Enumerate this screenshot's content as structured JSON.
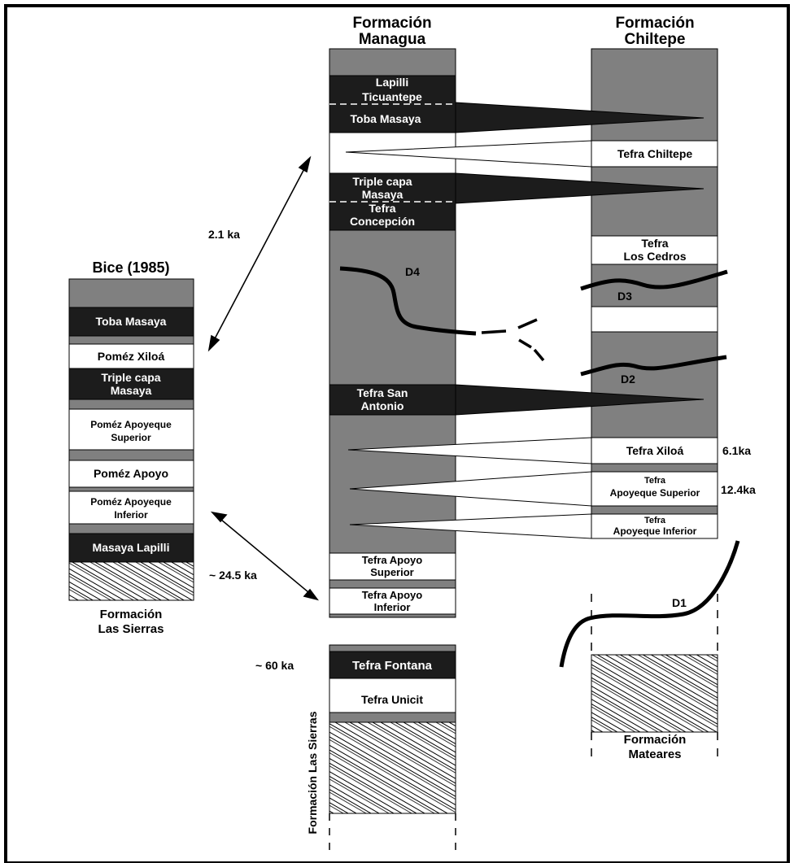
{
  "colors": {
    "gray": "#808080",
    "black": "#1c1c1c",
    "white": "#ffffff",
    "ink": "#000000"
  },
  "columns": {
    "bice": {
      "title": "Bice (1985)",
      "layers": [
        {
          "id": "bice-gray-top",
          "fill": "gray",
          "lines": []
        },
        {
          "id": "bice-toba-masaya",
          "fill": "black",
          "lines": [
            "Toba Masaya"
          ]
        },
        {
          "id": "bice-pomez-xiloa",
          "fill": "white",
          "lines": [
            "Poméz Xiloá"
          ]
        },
        {
          "id": "bice-triple-capa",
          "fill": "black",
          "lines": [
            "Triple capa",
            "Masaya"
          ]
        },
        {
          "id": "bice-apoyeque-sup",
          "fill": "white",
          "lines": [
            "Poméz Apoyeque",
            "Superior"
          ]
        },
        {
          "id": "bice-pomez-apoyo",
          "fill": "white",
          "lines": [
            "Poméz Apoyo"
          ]
        },
        {
          "id": "bice-apoyeque-inf",
          "fill": "white",
          "lines": [
            "Poméz Apoyeque",
            "Inferior"
          ]
        },
        {
          "id": "bice-masaya-lapilli",
          "fill": "black",
          "lines": [
            "Masaya Lapilli"
          ]
        }
      ],
      "base": [
        "Formación",
        "Las Sierras"
      ]
    },
    "managua": {
      "title": [
        "Formación",
        "Managua"
      ],
      "layers": [
        {
          "id": "managua-lapilli-ticuantepe",
          "fill": "black",
          "lines": [
            "Lapilli",
            "Ticuantepe"
          ]
        },
        {
          "id": "managua-toba-masaya",
          "fill": "black",
          "lines": [
            "Toba Masaya"
          ]
        },
        {
          "id": "managua-triple-capa",
          "fill": "black",
          "lines": [
            "Triple capa",
            "Masaya"
          ]
        },
        {
          "id": "managua-tefra-concepcion",
          "fill": "black",
          "lines": [
            "Tefra",
            "Concepción"
          ]
        },
        {
          "id": "managua-tefra-san-antonio",
          "fill": "black",
          "lines": [
            "Tefra San",
            "Antonio"
          ]
        },
        {
          "id": "managua-apoyo-superior",
          "fill": "white",
          "lines": [
            "Tefra  Apoyo",
            "Superior"
          ]
        },
        {
          "id": "managua-apoyo-inferior",
          "fill": "white",
          "lines": [
            "Tefra  Apoyo",
            "Inferior"
          ]
        },
        {
          "id": "managua-tefra-fontana",
          "fill": "black",
          "lines": [
            "Tefra Fontana"
          ]
        },
        {
          "id": "managua-tefra-unicit",
          "fill": "white",
          "lines": [
            "Tefra  Unicit"
          ]
        }
      ],
      "disconformity": "D4",
      "side_label": "Formación Las Sierras"
    },
    "chiltepe": {
      "title": [
        "Formación",
        "Chiltepe"
      ],
      "layers": [
        {
          "id": "chiltepe-tefra-chiltepe",
          "fill": "white",
          "lines": [
            "Tefra Chiltepe"
          ]
        },
        {
          "id": "chiltepe-los-cedros",
          "fill": "white",
          "lines": [
            "Tefra",
            "Los Cedros"
          ]
        },
        {
          "id": "chiltepe-tefra-xiloa",
          "fill": "white",
          "lines": [
            "Tefra Xiloá"
          ]
        },
        {
          "id": "chiltepe-apoyeque-sup",
          "fill": "white",
          "lines": [
            "Tefra",
            "Apoyeque Superior"
          ]
        },
        {
          "id": "chiltepe-apoyeque-inf",
          "fill": "white",
          "lines": [
            "Tefra",
            "Apoyeque Inferior"
          ]
        }
      ],
      "disconformities": [
        "D3",
        "D2"
      ],
      "base": [
        "Formación",
        "Mateares"
      ],
      "base_disconformity": "D1"
    }
  },
  "ages": {
    "a2_1": "2.1 ka",
    "a24_5": "~ 24.5 ka",
    "a60": "~ 60 ka",
    "a6_1": "6.1ka",
    "a12_4": "12.4ka"
  }
}
